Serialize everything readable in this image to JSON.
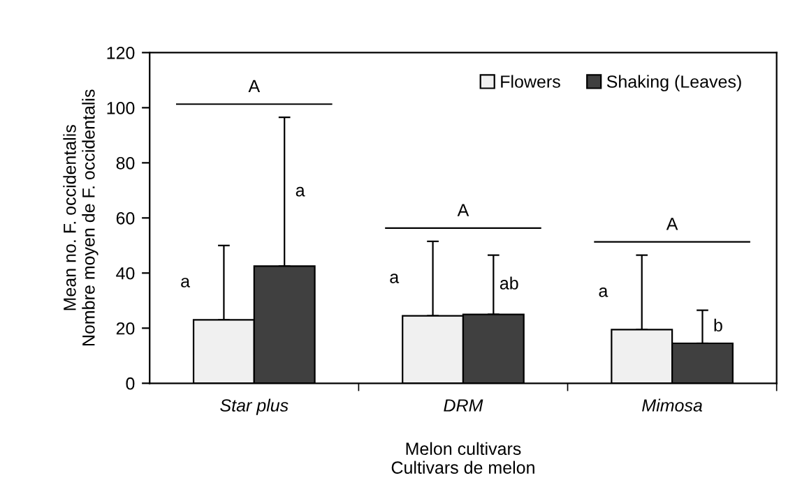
{
  "chart_data": {
    "type": "bar",
    "xlabel": "Melon cultivars\nCultivars de melon",
    "ylabel": "Mean no. F. occidentalis\nNombre moyen de F. occidentalis",
    "categories": [
      "Star plus",
      "DRM",
      "Mimosa"
    ],
    "series": [
      {
        "name": "Flowers",
        "color": "#f0f0f0",
        "values": [
          23,
          24.5,
          19.5
        ],
        "errors": [
          [
            23,
            50
          ],
          [
            24.5,
            51.5
          ],
          [
            19.5,
            46.5
          ]
        ]
      },
      {
        "name": "Shaking (Leaves)",
        "color": "#404040",
        "values": [
          42.5,
          25,
          14.5
        ],
        "errors": [
          [
            42.5,
            96.5
          ],
          [
            25,
            46.5
          ],
          [
            14.5,
            26.5
          ]
        ]
      }
    ],
    "ylim": [
      0,
      120
    ],
    "yticks": [
      0,
      20,
      40,
      60,
      80,
      100,
      120
    ],
    "grid": false,
    "legend": "top right",
    "annotations": [
      "a",
      "a",
      "A",
      "a",
      "ab",
      "A",
      "a",
      "b",
      "A"
    ]
  }
}
